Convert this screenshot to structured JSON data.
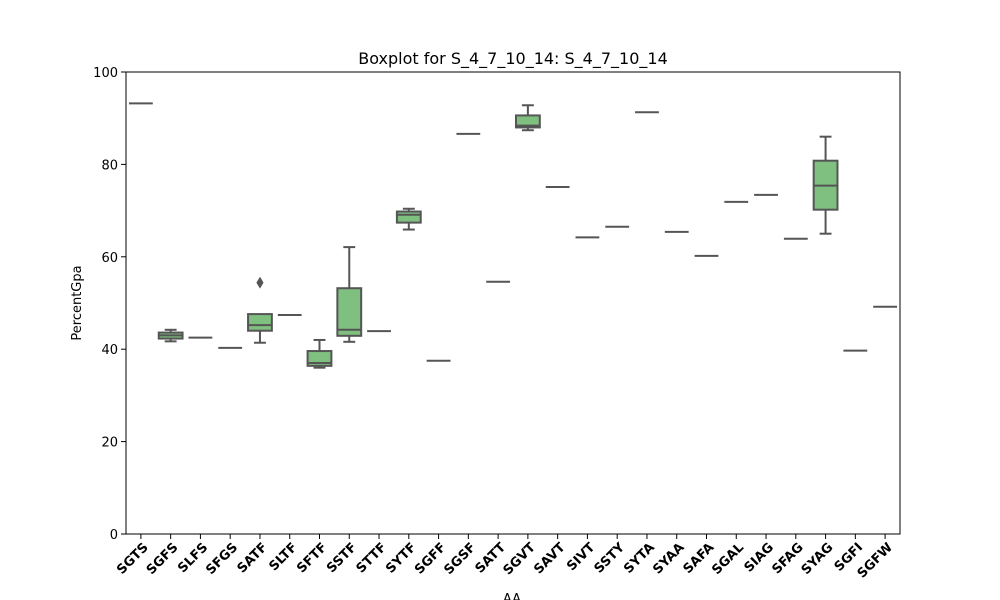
{
  "chart_data": {
    "type": "box",
    "title": "Boxplot for S_4_7_10_14: S_4_7_10_14",
    "xlabel": "AA",
    "ylabel": "PercentGpa",
    "ylim": [
      0,
      100
    ],
    "yticks": [
      0,
      20,
      40,
      60,
      80,
      100
    ],
    "box_color": "#7fbf7f",
    "line_color": "#555555",
    "categories": [
      "SGTS",
      "SGFS",
      "SLFS",
      "SFGS",
      "SATF",
      "SLTF",
      "SFTF",
      "SSTF",
      "STTF",
      "SYTF",
      "SGFF",
      "SGSF",
      "SATT",
      "SGVT",
      "SAVT",
      "SIVT",
      "SSTY",
      "SYTA",
      "SYAA",
      "SAFA",
      "SGAL",
      "SIAG",
      "SFAG",
      "SYAG",
      "SGFI",
      "SGFW"
    ],
    "boxes": [
      {
        "min": 93.2,
        "q1": 93.2,
        "median": 93.2,
        "q3": 93.2,
        "max": 93.2,
        "outliers": []
      },
      {
        "min": 41.7,
        "q1": 42.3,
        "median": 43.0,
        "q3": 43.6,
        "max": 44.2,
        "outliers": []
      },
      {
        "min": 42.5,
        "q1": 42.5,
        "median": 42.5,
        "q3": 42.5,
        "max": 42.5,
        "outliers": []
      },
      {
        "min": 40.3,
        "q1": 40.3,
        "median": 40.3,
        "q3": 40.3,
        "max": 40.3,
        "outliers": []
      },
      {
        "min": 41.4,
        "q1": 44.0,
        "median": 45.2,
        "q3": 47.6,
        "max": 47.6,
        "outliers": [
          54.4
        ]
      },
      {
        "min": 47.4,
        "q1": 47.4,
        "median": 47.4,
        "q3": 47.4,
        "max": 47.4,
        "outliers": []
      },
      {
        "min": 36.0,
        "q1": 36.4,
        "median": 37.0,
        "q3": 39.6,
        "max": 42.0,
        "outliers": []
      },
      {
        "min": 41.6,
        "q1": 42.9,
        "median": 44.2,
        "q3": 53.2,
        "max": 62.1,
        "outliers": []
      },
      {
        "min": 43.9,
        "q1": 43.9,
        "median": 43.9,
        "q3": 43.9,
        "max": 43.9,
        "outliers": []
      },
      {
        "min": 65.9,
        "q1": 67.4,
        "median": 69.1,
        "q3": 69.8,
        "max": 70.4,
        "outliers": []
      },
      {
        "min": 37.5,
        "q1": 37.5,
        "median": 37.5,
        "q3": 37.5,
        "max": 37.5,
        "outliers": []
      },
      {
        "min": 86.6,
        "q1": 86.6,
        "median": 86.6,
        "q3": 86.6,
        "max": 86.6,
        "outliers": []
      },
      {
        "min": 54.6,
        "q1": 54.6,
        "median": 54.6,
        "q3": 54.6,
        "max": 54.6,
        "outliers": []
      },
      {
        "min": 87.4,
        "q1": 88.0,
        "median": 88.4,
        "q3": 90.6,
        "max": 92.8,
        "outliers": []
      },
      {
        "min": 75.1,
        "q1": 75.1,
        "median": 75.1,
        "q3": 75.1,
        "max": 75.1,
        "outliers": []
      },
      {
        "min": 64.2,
        "q1": 64.2,
        "median": 64.2,
        "q3": 64.2,
        "max": 64.2,
        "outliers": []
      },
      {
        "min": 66.5,
        "q1": 66.5,
        "median": 66.5,
        "q3": 66.5,
        "max": 66.5,
        "outliers": []
      },
      {
        "min": 91.3,
        "q1": 91.3,
        "median": 91.3,
        "q3": 91.3,
        "max": 91.3,
        "outliers": []
      },
      {
        "min": 65.4,
        "q1": 65.4,
        "median": 65.4,
        "q3": 65.4,
        "max": 65.4,
        "outliers": []
      },
      {
        "min": 60.2,
        "q1": 60.2,
        "median": 60.2,
        "q3": 60.2,
        "max": 60.2,
        "outliers": []
      },
      {
        "min": 71.9,
        "q1": 71.9,
        "median": 71.9,
        "q3": 71.9,
        "max": 71.9,
        "outliers": []
      },
      {
        "min": 73.4,
        "q1": 73.4,
        "median": 73.4,
        "q3": 73.4,
        "max": 73.4,
        "outliers": []
      },
      {
        "min": 63.9,
        "q1": 63.9,
        "median": 63.9,
        "q3": 63.9,
        "max": 63.9,
        "outliers": []
      },
      {
        "min": 65.0,
        "q1": 70.2,
        "median": 75.4,
        "q3": 80.8,
        "max": 86.0,
        "outliers": []
      },
      {
        "min": 39.7,
        "q1": 39.7,
        "median": 39.7,
        "q3": 39.7,
        "max": 39.7,
        "outliers": []
      },
      {
        "min": 49.2,
        "q1": 49.2,
        "median": 49.2,
        "q3": 49.2,
        "max": 49.2,
        "outliers": []
      }
    ]
  }
}
